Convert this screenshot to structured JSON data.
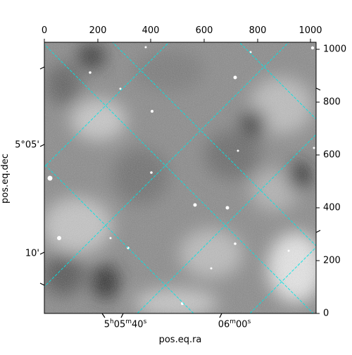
{
  "figure": {
    "xlabel": "pos.eq.ra",
    "ylabel": "pos.eq.dec",
    "top_ticks": [
      "0",
      "200",
      "400",
      "600",
      "800",
      "1000"
    ],
    "right_ticks": [
      "0",
      "200",
      "400",
      "600",
      "800",
      "1000"
    ],
    "bottom_ticks": [
      {
        "h": "5",
        "hs": "h",
        "m": "05",
        "ms": "m",
        "s": "40",
        "ss": "s"
      },
      {
        "m": "06",
        "ms": "m",
        "s": "00",
        "ss": "s"
      }
    ],
    "left_ticks": [
      "5°05'",
      "10'"
    ],
    "grid_color": "#00e5e5"
  }
}
